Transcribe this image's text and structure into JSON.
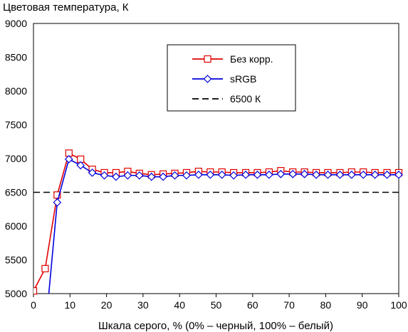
{
  "chart_data": {
    "type": "line",
    "title": "Цветовая температура, К",
    "xlabel": "Шкала серого, % (0% – черный, 100% – белый)",
    "ylabel": "",
    "xlim": [
      0,
      100
    ],
    "ylim": [
      5000,
      9000
    ],
    "xticks": [
      0,
      10,
      20,
      30,
      40,
      50,
      60,
      70,
      80,
      90,
      100
    ],
    "yticks": [
      5000,
      5500,
      6000,
      6500,
      7000,
      7500,
      8000,
      8500,
      9000
    ],
    "grid": true,
    "legend_position": "top-right",
    "series": [
      {
        "name": "Без корр.",
        "color": "#e00000",
        "marker": "square",
        "x": [
          0,
          3.2,
          6.5,
          9.7,
          12.9,
          16.1,
          19.4,
          22.6,
          25.8,
          29.0,
          32.3,
          35.5,
          38.7,
          41.9,
          45.2,
          48.4,
          51.6,
          54.8,
          58.1,
          61.3,
          64.5,
          67.7,
          71.0,
          74.2,
          77.4,
          80.6,
          83.9,
          87.1,
          90.3,
          93.5,
          96.8,
          100
        ],
        "y": [
          5040,
          5370,
          6460,
          7080,
          6990,
          6840,
          6790,
          6790,
          6810,
          6780,
          6760,
          6770,
          6780,
          6790,
          6810,
          6800,
          6800,
          6790,
          6790,
          6790,
          6800,
          6820,
          6800,
          6800,
          6790,
          6790,
          6790,
          6800,
          6800,
          6790,
          6790,
          6790
        ]
      },
      {
        "name": "sRGB",
        "color": "#0000dd",
        "marker": "diamond",
        "x": [
          4.2,
          6.5,
          9.7,
          12.9,
          16.1,
          19.4,
          22.6,
          25.8,
          29.0,
          32.3,
          35.5,
          38.7,
          41.9,
          45.2,
          48.4,
          51.6,
          54.8,
          58.1,
          61.3,
          64.5,
          67.7,
          71.0,
          74.2,
          77.4,
          80.6,
          83.9,
          87.1,
          90.3,
          93.5,
          96.8,
          100
        ],
        "y": [
          5000,
          6350,
          6990,
          6900,
          6790,
          6750,
          6730,
          6750,
          6750,
          6730,
          6730,
          6750,
          6750,
          6760,
          6760,
          6760,
          6750,
          6760,
          6760,
          6760,
          6770,
          6770,
          6770,
          6760,
          6760,
          6760,
          6760,
          6760,
          6760,
          6760,
          6760
        ],
        "first_point_unmarked": true
      },
      {
        "name": "6500 К",
        "color": "#000000",
        "style": "dashed",
        "x": [
          0,
          100
        ],
        "y": [
          6500,
          6500
        ]
      }
    ]
  }
}
